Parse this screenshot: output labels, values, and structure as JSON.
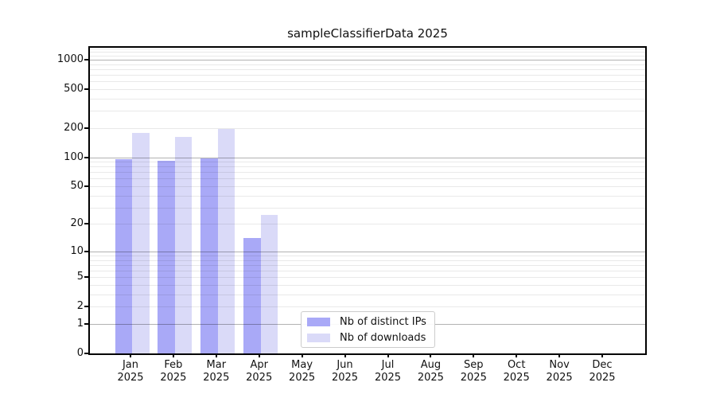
{
  "chart_data": {
    "type": "bar",
    "title": "sampleClassifierData 2025",
    "categories": [
      "Jan",
      "Feb",
      "Mar",
      "Apr",
      "May",
      "Jun",
      "Jul",
      "Aug",
      "Sep",
      "Oct",
      "Nov",
      "Dec"
    ],
    "year_label": "2025",
    "series": [
      {
        "name": "Nb of distinct IPs",
        "color": "#a9a9f7",
        "values": [
          95,
          92,
          98,
          14,
          0,
          0,
          0,
          0,
          0,
          0,
          0,
          0
        ]
      },
      {
        "name": "Nb of downloads",
        "color": "#dadaf8",
        "values": [
          177,
          161,
          196,
          25,
          0,
          0,
          0,
          0,
          0,
          0,
          0,
          0
        ]
      }
    ],
    "xlabel": "",
    "ylabel": "",
    "y_ticks": [
      0,
      1,
      2,
      5,
      10,
      20,
      50,
      100,
      200,
      500,
      1000
    ],
    "y_scale": "log10(value+1)",
    "y_axis_max": 1320,
    "grid": true,
    "legend_position": "inside-bottom-center-left"
  }
}
